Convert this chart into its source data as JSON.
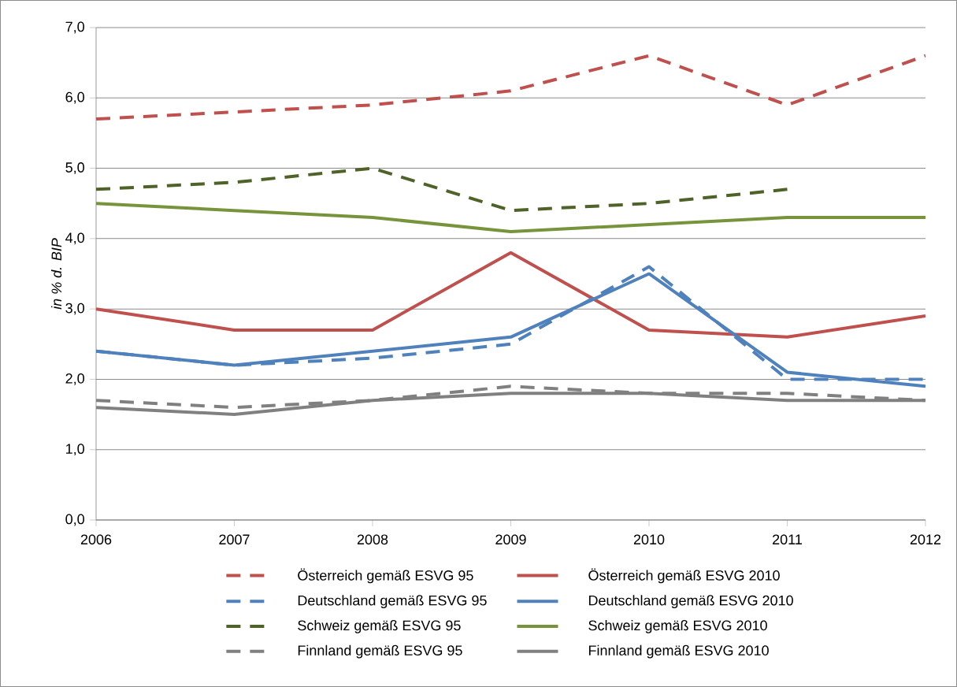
{
  "chart_data": {
    "type": "line",
    "ylabel": "in % d. BIP",
    "x": [
      2006,
      2007,
      2008,
      2009,
      2010,
      2011,
      2012
    ],
    "xlim": [
      2006,
      2012
    ],
    "xticks": [
      2006,
      2007,
      2008,
      2009,
      2010,
      2011,
      2012
    ],
    "ylim": [
      0,
      7
    ],
    "yticks": [
      {
        "value": 0,
        "label": "0,0"
      },
      {
        "value": 1,
        "label": "1,0"
      },
      {
        "value": 2,
        "label": "2,0"
      },
      {
        "value": 3,
        "label": "3,0"
      },
      {
        "value": 4,
        "label": "4,0"
      },
      {
        "value": 5,
        "label": "5,0"
      },
      {
        "value": 6,
        "label": "6,0"
      },
      {
        "value": 7,
        "label": "7,0"
      }
    ],
    "grid": "y",
    "legend": "bottom",
    "marker": "none",
    "series": [
      {
        "name": "Österreich gemäß ESVG 95",
        "color": "#c0504d",
        "line_style": "dashed",
        "values": [
          5.7,
          5.8,
          5.9,
          6.1,
          6.6,
          5.9,
          6.6
        ]
      },
      {
        "name": "Österreich gemäß ESVG 2010",
        "color": "#c0504d",
        "line_style": "solid",
        "values": [
          3.0,
          2.7,
          2.7,
          3.8,
          2.7,
          2.6,
          2.9
        ]
      },
      {
        "name": "Deutschland gemäß ESVG 95",
        "color": "#4f81bd",
        "line_style": "dashed",
        "values": [
          2.4,
          2.2,
          2.3,
          2.5,
          3.6,
          2.0,
          2.0
        ]
      },
      {
        "name": "Deutschland gemäß ESVG 2010",
        "color": "#4f81bd",
        "line_style": "solid",
        "values": [
          2.4,
          2.2,
          2.4,
          2.6,
          3.5,
          2.1,
          1.9
        ]
      },
      {
        "name": "Schweiz gemäß ESVG 95",
        "color": "#4f6228",
        "line_style": "dashed",
        "values": [
          4.7,
          4.8,
          5.0,
          4.4,
          4.5,
          4.7,
          null
        ]
      },
      {
        "name": "Schweiz gemäß ESVG 2010",
        "color": "#77933c",
        "line_style": "solid",
        "values": [
          4.5,
          4.4,
          4.3,
          4.1,
          4.2,
          4.3,
          4.3
        ]
      },
      {
        "name": "Finnland gemäß ESVG 95",
        "color": "#808080",
        "line_style": "dashed",
        "values": [
          1.7,
          1.6,
          1.7,
          1.9,
          1.8,
          1.8,
          1.7
        ]
      },
      {
        "name": "Finnland gemäß ESVG 2010",
        "color": "#808080",
        "line_style": "solid",
        "values": [
          1.6,
          1.5,
          1.7,
          1.8,
          1.8,
          1.7,
          1.7
        ]
      }
    ]
  }
}
